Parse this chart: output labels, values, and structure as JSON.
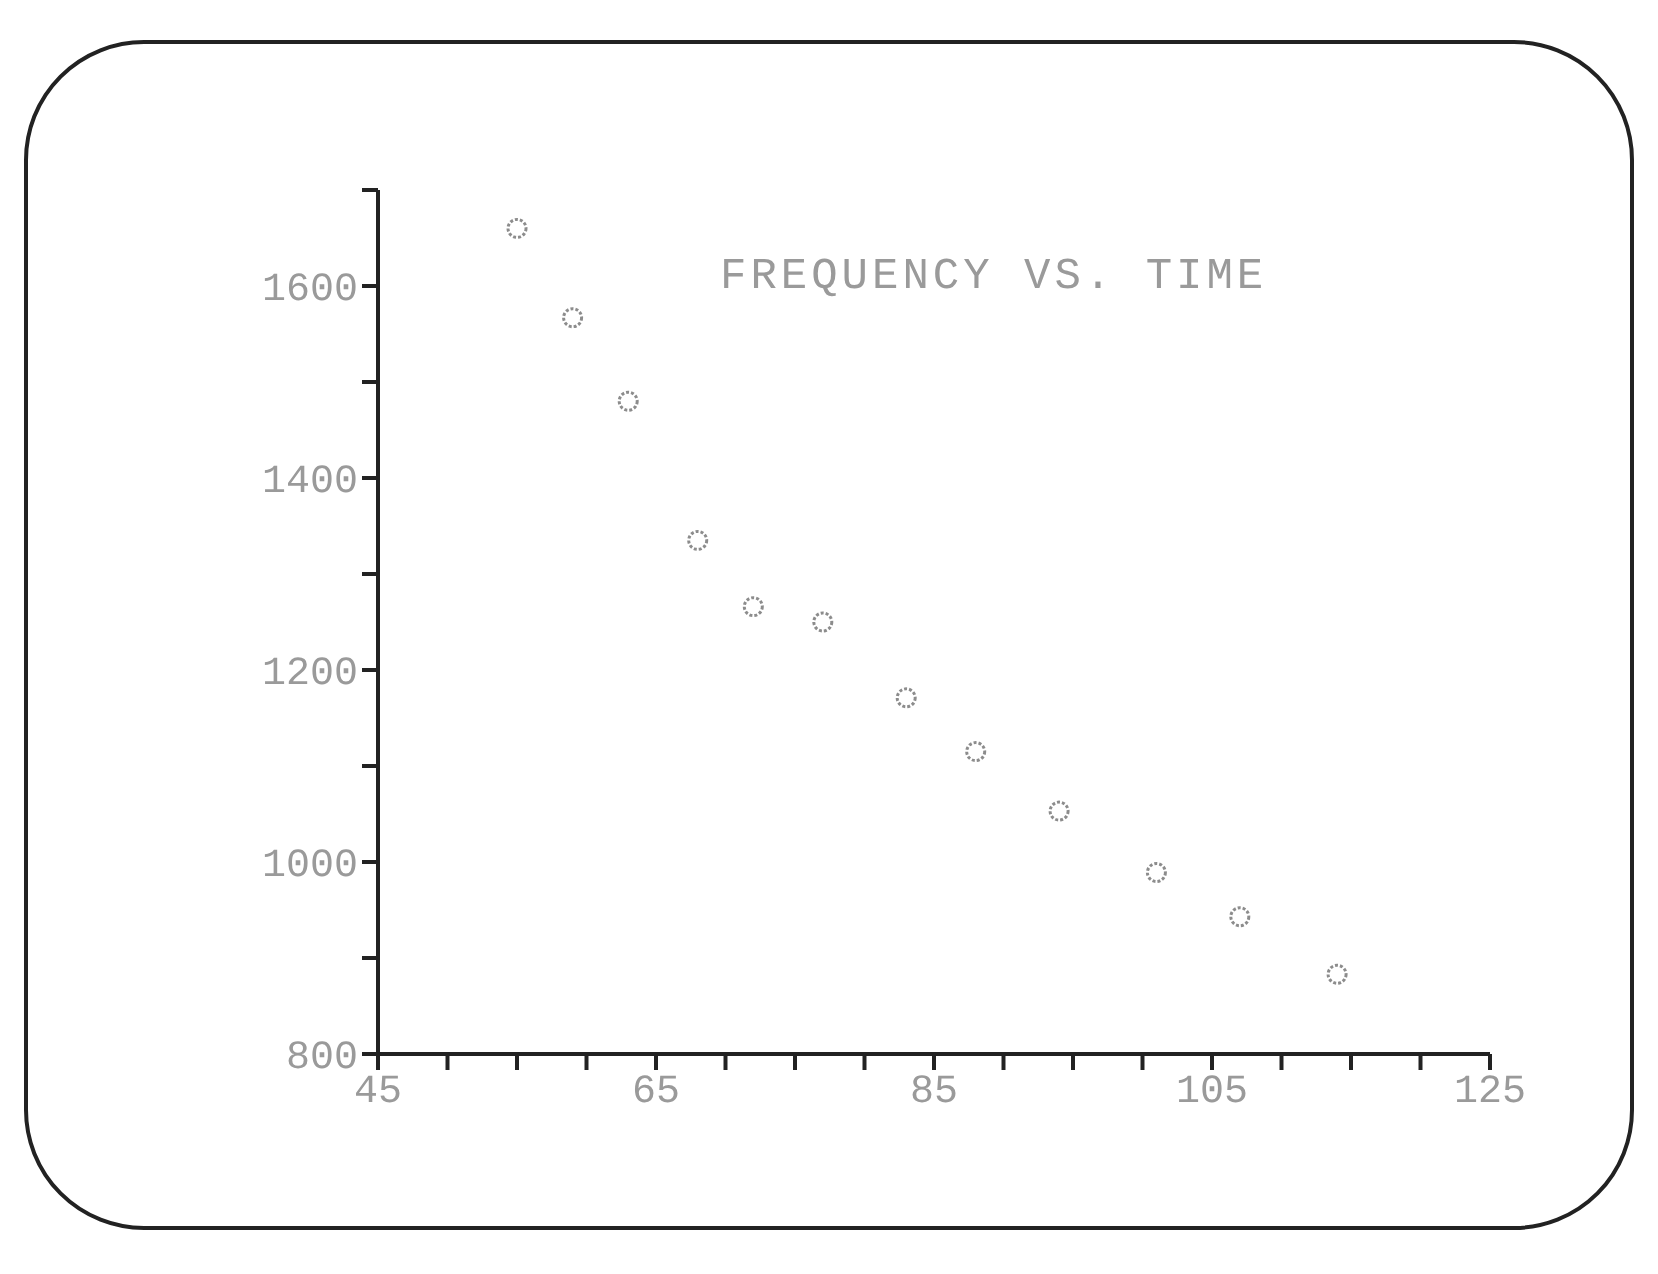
{
  "chart_data": {
    "type": "scatter",
    "title": "FREQUENCY VS. TIME",
    "x": [
      55,
      59,
      63,
      68,
      72,
      77,
      83,
      88,
      94,
      101,
      107,
      114
    ],
    "series": [
      {
        "color": "#8c8c8c",
        "values": [
          1660,
          1567,
          1480,
          1335,
          1266,
          1250,
          1171,
          1115,
          1053,
          989,
          943,
          883
        ]
      }
    ],
    "xlim": [
      45,
      125
    ],
    "xticks": [
      45,
      {
        "value": 50,
        "label": null
      },
      {
        "value": 55,
        "label": null
      },
      {
        "value": 60,
        "label": null
      },
      65,
      {
        "value": 70,
        "label": null
      },
      {
        "value": 75,
        "label": null
      },
      {
        "value": 80,
        "label": null
      },
      85,
      {
        "value": 90,
        "label": null
      },
      {
        "value": 95,
        "label": null
      },
      {
        "value": 100,
        "label": null
      },
      105,
      {
        "value": 110,
        "label": null
      },
      {
        "value": 115,
        "label": null
      },
      {
        "value": 120,
        "label": null
      },
      125
    ],
    "ylim": [
      800,
      1700
    ],
    "yticks": [
      800,
      {
        "value": 900,
        "label": null
      },
      1000,
      {
        "value": 1100,
        "label": null
      },
      1200,
      {
        "value": 1300,
        "label": null
      },
      1400,
      {
        "value": 1500,
        "label": null
      },
      1600,
      {
        "value": 1700,
        "label": null
      }
    ],
    "marker": "circle",
    "grid": false,
    "legend": false
  }
}
